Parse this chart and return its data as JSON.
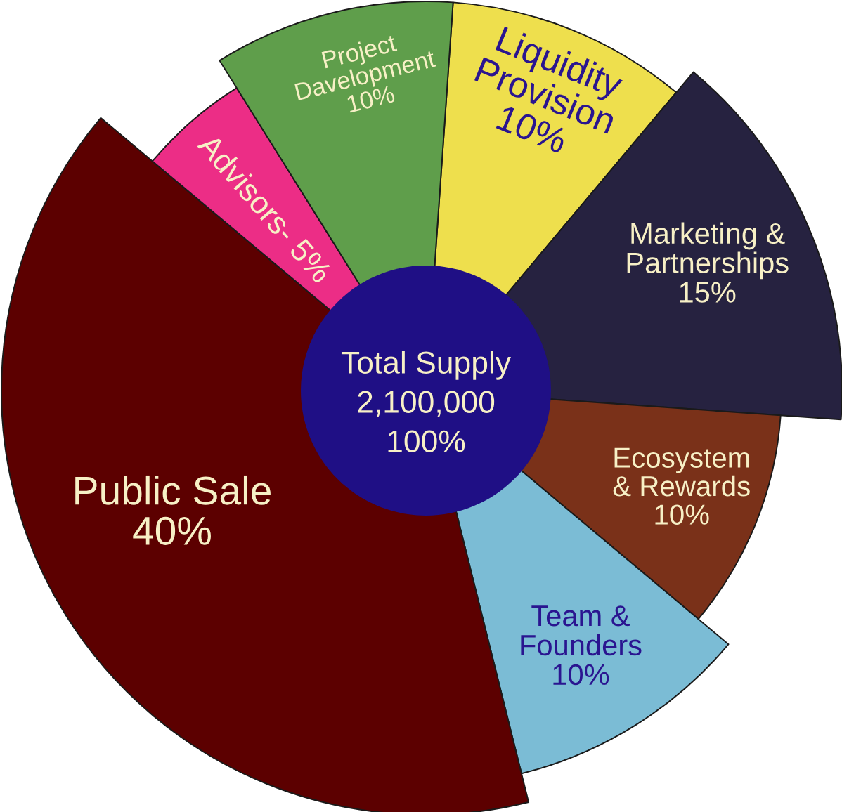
{
  "chart_data": {
    "type": "donut",
    "categories": [
      "Liquidity Provision",
      "Marketing & Partnerships",
      "Ecosystem & Rewards",
      "Team & Founders",
      "Public Sale",
      "Advisors-",
      "Project Davelopment"
    ],
    "values": [
      10,
      15,
      10,
      10,
      40,
      5,
      10
    ],
    "value_labels": [
      "10%",
      "15%",
      "10%",
      "10%",
      "40%",
      "5%",
      "10%"
    ],
    "colors": [
      "#eedf4d",
      "#262240",
      "#7a3119",
      "#7bbcd5",
      "#5c0000",
      "#ec2d86",
      "#5f9e4b"
    ],
    "annotations": [
      "Total Supply",
      "2,100,000",
      "100%"
    ]
  }
}
